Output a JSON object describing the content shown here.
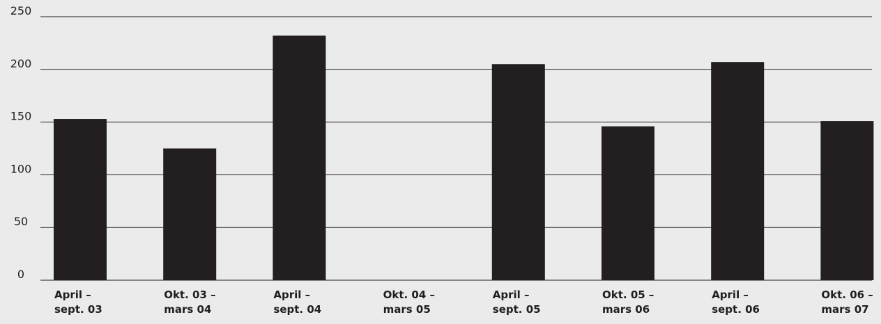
{
  "chart_data": {
    "type": "bar",
    "title": "",
    "xlabel": "",
    "ylabel": "",
    "ylim": [
      0,
      250
    ],
    "yticks": [
      0,
      50,
      100,
      150,
      200,
      250
    ],
    "grid": true,
    "categories": [
      [
        "April –",
        "sept. 03"
      ],
      [
        "Okt. 03 –",
        "mars 04"
      ],
      [
        "April –",
        "sept. 04"
      ],
      [
        "Okt. 04 –",
        "mars 05"
      ],
      [
        "April –",
        "sept. 05"
      ],
      [
        "Okt. 05 –",
        "mars 06"
      ],
      [
        "April –",
        "sept. 06"
      ],
      [
        "Okt. 06 –",
        "mars 07"
      ]
    ],
    "values": [
      153,
      125,
      232,
      null,
      205,
      146,
      207,
      151
    ],
    "colors": {
      "bar": "#231f20",
      "background": "#ebebeb",
      "grid": "#231f20",
      "text": "#1f1f1f"
    }
  }
}
